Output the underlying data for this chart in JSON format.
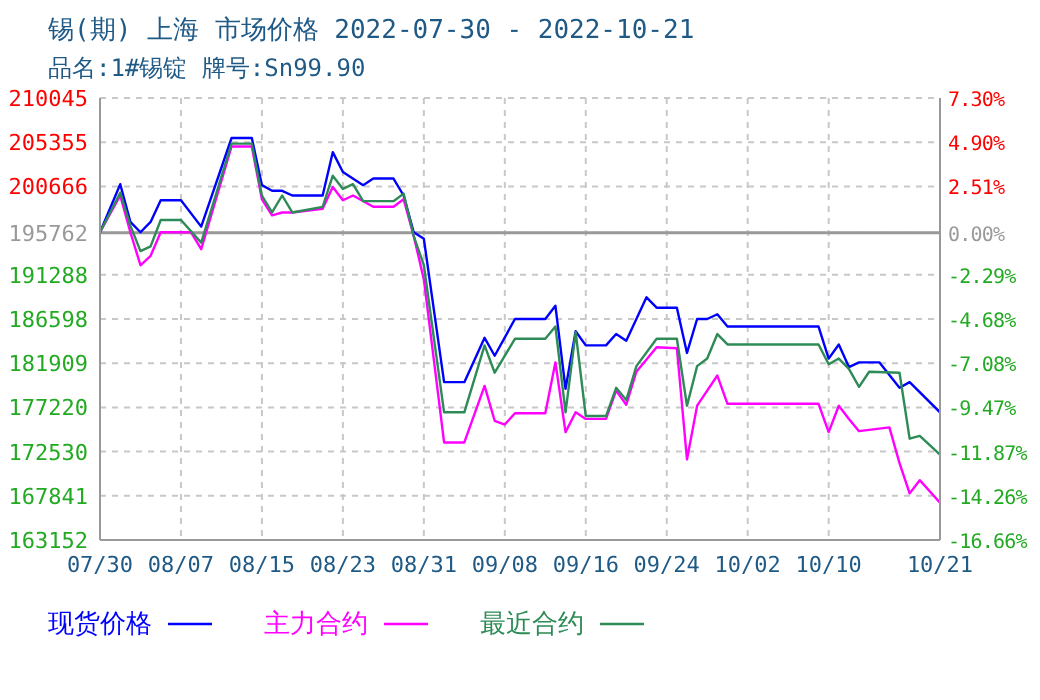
{
  "chart_data": {
    "type": "line",
    "title": "锡(期) 上海 市场价格 2022-07-30 - 2022-10-21",
    "subtitle": "品名:1#锡锭 牌号:Sn99.90",
    "xlim": [
      "2022-07-30",
      "2022-10-21"
    ],
    "xticks": [
      {
        "value": "2022-07-30",
        "label": "07/30"
      },
      {
        "value": "2022-08-07",
        "label": "08/07"
      },
      {
        "value": "2022-08-15",
        "label": "08/15"
      },
      {
        "value": "2022-08-23",
        "label": "08/23"
      },
      {
        "value": "2022-08-31",
        "label": "08/31"
      },
      {
        "value": "2022-09-08",
        "label": "09/08"
      },
      {
        "value": "2022-09-16",
        "label": "09/16"
      },
      {
        "value": "2022-09-24",
        "label": "09/24"
      },
      {
        "value": "2022-10-02",
        "label": "10/02"
      },
      {
        "value": "2022-10-10",
        "label": "10/10"
      },
      {
        "value": "2022-10-21",
        "label": "10/21"
      }
    ],
    "ylim": [
      163152,
      210045
    ],
    "yticks": [
      163152,
      167841,
      172530,
      177220,
      181909,
      186598,
      191288,
      195762,
      200666,
      205355,
      210045
    ],
    "y2lim": [
      -16.66,
      7.3
    ],
    "y2ticks": [
      {
        "value": -16.66,
        "label": "-16.66%"
      },
      {
        "value": -14.26,
        "label": "-14.26%"
      },
      {
        "value": -11.87,
        "label": "-11.87%"
      },
      {
        "value": -9.47,
        "label": "-9.47%"
      },
      {
        "value": -7.08,
        "label": "-7.08%"
      },
      {
        "value": -4.68,
        "label": "-4.68%"
      },
      {
        "value": -2.29,
        "label": "-2.29%"
      },
      {
        "value": 0,
        "label": "0.00%"
      },
      {
        "value": 2.51,
        "label": "2.51%"
      },
      {
        "value": 4.9,
        "label": "4.90%"
      },
      {
        "value": 7.3,
        "label": "7.30%"
      }
    ],
    "ref_lines": [
      {
        "axis": "y2",
        "value": 0,
        "color": "#999999"
      }
    ],
    "grid": true,
    "legend": "bottom",
    "line_style": "solid",
    "marker": "none",
    "series": [
      {
        "name": "现货价格",
        "color": "#0000ff",
        "x": [
          "2022-07-30",
          "2022-08-01",
          "2022-08-02",
          "2022-08-03",
          "2022-08-04",
          "2022-08-05",
          "2022-08-07",
          "2022-08-09",
          "2022-08-12",
          "2022-08-14",
          "2022-08-15",
          "2022-08-16",
          "2022-08-17",
          "2022-08-18",
          "2022-08-21",
          "2022-08-22",
          "2022-08-23",
          "2022-08-25",
          "2022-08-26",
          "2022-08-28",
          "2022-08-29",
          "2022-08-30",
          "2022-08-31",
          "2022-09-02",
          "2022-09-04",
          "2022-09-06",
          "2022-09-07",
          "2022-09-09",
          "2022-09-12",
          "2022-09-13",
          "2022-09-14",
          "2022-09-15",
          "2022-09-16",
          "2022-09-18",
          "2022-09-19",
          "2022-09-20",
          "2022-09-22",
          "2022-09-23",
          "2022-09-25",
          "2022-09-26",
          "2022-09-27",
          "2022-09-28",
          "2022-09-29",
          "2022-09-30",
          "2022-10-09",
          "2022-10-10",
          "2022-10-11",
          "2022-10-12",
          "2022-10-13",
          "2022-10-15",
          "2022-10-17",
          "2022-10-18",
          "2022-10-21"
        ],
        "values": [
          195800,
          200900,
          196900,
          195800,
          196900,
          199200,
          199200,
          196400,
          205800,
          205800,
          200800,
          200200,
          200200,
          199700,
          199700,
          204300,
          202200,
          200800,
          201500,
          201500,
          199700,
          195800,
          195100,
          179900,
          179900,
          184600,
          182700,
          186600,
          186600,
          188000,
          179200,
          185300,
          183800,
          183800,
          185000,
          184300,
          188900,
          187800,
          187800,
          183000,
          186600,
          186600,
          187100,
          185800,
          185800,
          182400,
          183900,
          181500,
          182000,
          182000,
          179300,
          179900,
          176700
        ]
      },
      {
        "name": "主力合约",
        "color": "#ff00ff",
        "x": [
          "2022-07-30",
          "2022-08-01",
          "2022-08-02",
          "2022-08-03",
          "2022-08-04",
          "2022-08-05",
          "2022-08-08",
          "2022-08-09",
          "2022-08-12",
          "2022-08-14",
          "2022-08-15",
          "2022-08-16",
          "2022-08-17",
          "2022-08-18",
          "2022-08-21",
          "2022-08-22",
          "2022-08-23",
          "2022-08-24",
          "2022-08-26",
          "2022-08-28",
          "2022-08-29",
          "2022-08-30",
          "2022-08-31",
          "2022-09-02",
          "2022-09-04",
          "2022-09-06",
          "2022-09-07",
          "2022-09-08",
          "2022-09-09",
          "2022-09-12",
          "2022-09-13",
          "2022-09-14",
          "2022-09-15",
          "2022-09-16",
          "2022-09-18",
          "2022-09-19",
          "2022-09-20",
          "2022-09-21",
          "2022-09-23",
          "2022-09-25",
          "2022-09-26",
          "2022-09-27",
          "2022-09-28",
          "2022-09-29",
          "2022-09-30",
          "2022-10-09",
          "2022-10-10",
          "2022-10-11",
          "2022-10-12",
          "2022-10-13",
          "2022-10-16",
          "2022-10-17",
          "2022-10-18",
          "2022-10-19",
          "2022-10-21"
        ],
        "values": [
          195800,
          199700,
          195800,
          192300,
          193300,
          195800,
          195800,
          194000,
          204900,
          204900,
          199300,
          197600,
          197900,
          197900,
          198300,
          200600,
          199200,
          199700,
          198500,
          198500,
          199300,
          195400,
          190800,
          173500,
          173500,
          179500,
          175800,
          175400,
          176600,
          176600,
          182000,
          174600,
          176700,
          176000,
          176000,
          179000,
          177500,
          181000,
          183600,
          183500,
          171700,
          177400,
          179000,
          180600,
          177600,
          177600,
          174600,
          177400,
          176000,
          174700,
          175100,
          171300,
          168100,
          169500,
          167100
        ]
      },
      {
        "name": "最近合约",
        "color": "#2e8b57",
        "x": [
          "2022-07-30",
          "2022-08-01",
          "2022-08-02",
          "2022-08-03",
          "2022-08-04",
          "2022-08-05",
          "2022-08-07",
          "2022-08-09",
          "2022-08-12",
          "2022-08-14",
          "2022-08-15",
          "2022-08-16",
          "2022-08-17",
          "2022-08-18",
          "2022-08-21",
          "2022-08-22",
          "2022-08-23",
          "2022-08-24",
          "2022-08-25",
          "2022-08-28",
          "2022-08-29",
          "2022-08-30",
          "2022-08-31",
          "2022-09-02",
          "2022-09-04",
          "2022-09-06",
          "2022-09-07",
          "2022-09-09",
          "2022-09-12",
          "2022-09-13",
          "2022-09-14",
          "2022-09-15",
          "2022-09-16",
          "2022-09-18",
          "2022-09-19",
          "2022-09-20",
          "2022-09-21",
          "2022-09-23",
          "2022-09-25",
          "2022-09-26",
          "2022-09-27",
          "2022-09-28",
          "2022-09-29",
          "2022-09-30",
          "2022-10-09",
          "2022-10-10",
          "2022-10-11",
          "2022-10-12",
          "2022-10-13",
          "2022-10-14",
          "2022-10-17",
          "2022-10-18",
          "2022-10-19",
          "2022-10-21"
        ],
        "values": [
          195800,
          200000,
          196500,
          193800,
          194300,
          197100,
          197100,
          194700,
          205200,
          205200,
          199700,
          197900,
          199700,
          197900,
          198500,
          201800,
          200400,
          200900,
          199100,
          199100,
          199900,
          195400,
          192300,
          176700,
          176700,
          183800,
          180900,
          184500,
          184500,
          185800,
          176700,
          185200,
          176300,
          176300,
          179300,
          178000,
          181600,
          184500,
          184500,
          177400,
          181600,
          182400,
          185000,
          183900,
          183900,
          181800,
          182400,
          181300,
          179400,
          181000,
          180900,
          173900,
          174200,
          172200
        ]
      }
    ]
  }
}
